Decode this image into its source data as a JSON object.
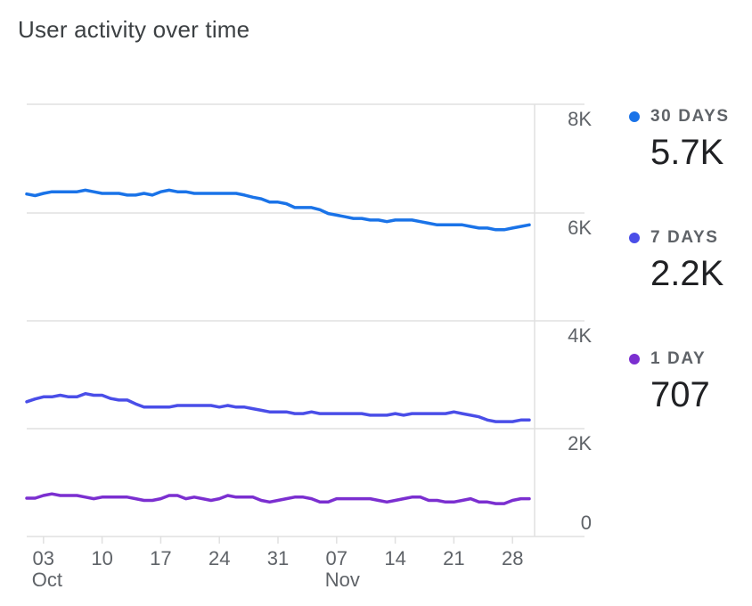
{
  "title": "User activity over time",
  "chart_data": {
    "type": "line",
    "title": "User activity over time",
    "xlabel": "",
    "ylabel": "",
    "ylim": [
      0,
      8000
    ],
    "y_ticks": [
      {
        "value": 8000,
        "label": "8K"
      },
      {
        "value": 6000,
        "label": "6K"
      },
      {
        "value": 4000,
        "label": "4K"
      },
      {
        "value": 2000,
        "label": "2K"
      },
      {
        "value": 0,
        "label": "0"
      }
    ],
    "x_ticks": [
      {
        "day": 3,
        "label": "03",
        "month": "Oct"
      },
      {
        "day": 10,
        "label": "10",
        "month": ""
      },
      {
        "day": 17,
        "label": "17",
        "month": ""
      },
      {
        "day": 24,
        "label": "24",
        "month": ""
      },
      {
        "day": 31,
        "label": "31",
        "month": ""
      },
      {
        "day": 38,
        "label": "07",
        "month": "Nov"
      },
      {
        "day": 45,
        "label": "14",
        "month": ""
      },
      {
        "day": 52,
        "label": "21",
        "month": ""
      },
      {
        "day": 59,
        "label": "28",
        "month": ""
      }
    ],
    "x": [
      1,
      2,
      3,
      4,
      5,
      6,
      7,
      8,
      9,
      10,
      11,
      12,
      13,
      14,
      15,
      16,
      17,
      18,
      19,
      20,
      21,
      22,
      23,
      24,
      25,
      26,
      27,
      28,
      29,
      30,
      31,
      32,
      33,
      34,
      35,
      36,
      37,
      38,
      39,
      40,
      41,
      42,
      43,
      44,
      45,
      46,
      47,
      48,
      49,
      50,
      51,
      52,
      53,
      54,
      55,
      56,
      57,
      58,
      59,
      60,
      61
    ],
    "series": [
      {
        "name": "30 DAYS",
        "color": "#1a73e8",
        "values": [
          6350,
          6320,
          6360,
          6390,
          6390,
          6390,
          6390,
          6420,
          6390,
          6360,
          6360,
          6360,
          6330,
          6330,
          6360,
          6330,
          6390,
          6420,
          6390,
          6390,
          6360,
          6360,
          6360,
          6360,
          6360,
          6360,
          6330,
          6290,
          6260,
          6200,
          6200,
          6170,
          6100,
          6100,
          6100,
          6060,
          5990,
          5960,
          5930,
          5900,
          5900,
          5870,
          5870,
          5840,
          5870,
          5870,
          5870,
          5840,
          5810,
          5780,
          5780,
          5780,
          5780,
          5750,
          5720,
          5720,
          5690,
          5690,
          5720,
          5750,
          5780
        ]
      },
      {
        "name": "7 DAYS",
        "color": "#4a4ee8",
        "values": [
          2500,
          2550,
          2590,
          2590,
          2620,
          2590,
          2590,
          2650,
          2620,
          2620,
          2560,
          2530,
          2530,
          2460,
          2400,
          2400,
          2400,
          2400,
          2430,
          2430,
          2430,
          2430,
          2430,
          2400,
          2430,
          2400,
          2400,
          2370,
          2340,
          2310,
          2310,
          2310,
          2280,
          2280,
          2310,
          2280,
          2280,
          2280,
          2280,
          2280,
          2280,
          2250,
          2250,
          2250,
          2280,
          2250,
          2280,
          2280,
          2280,
          2280,
          2280,
          2310,
          2280,
          2250,
          2220,
          2160,
          2130,
          2130,
          2130,
          2160,
          2160
        ]
      },
      {
        "name": "1 DAY",
        "color": "#7b2fd0",
        "values": [
          710,
          710,
          760,
          790,
          760,
          760,
          760,
          730,
          700,
          730,
          730,
          730,
          730,
          700,
          670,
          670,
          700,
          760,
          760,
          700,
          730,
          700,
          670,
          700,
          760,
          730,
          730,
          730,
          670,
          640,
          670,
          700,
          730,
          730,
          700,
          640,
          640,
          700,
          700,
          700,
          700,
          700,
          670,
          640,
          670,
          700,
          730,
          730,
          670,
          670,
          640,
          640,
          670,
          700,
          640,
          640,
          610,
          610,
          670,
          700,
          700
        ]
      }
    ],
    "legend": [
      {
        "label": "30 DAYS",
        "value": "5.7K",
        "color": "#1a73e8"
      },
      {
        "label": "7 DAYS",
        "value": "2.2K",
        "color": "#4a4ee8"
      },
      {
        "label": "1 DAY",
        "value": "707",
        "color": "#7b2fd0"
      }
    ]
  }
}
